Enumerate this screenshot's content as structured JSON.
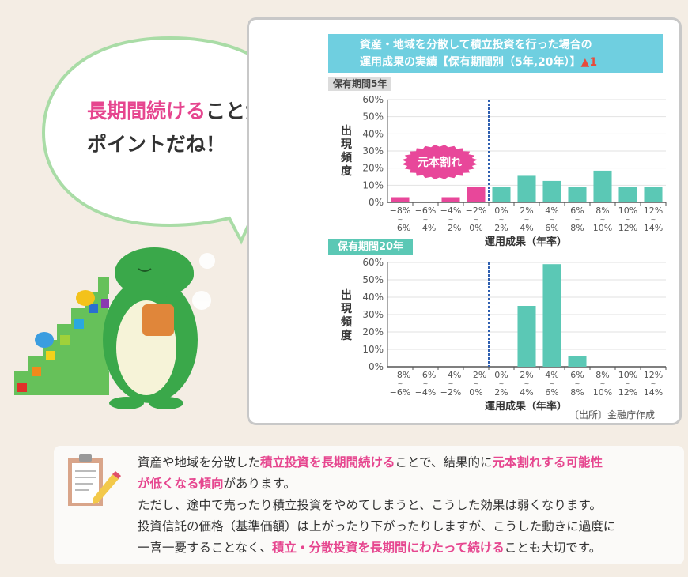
{
  "bubble": {
    "highlight": "長期間続ける",
    "rest1": "ことが",
    "line2": "ポイントだね！"
  },
  "chart_header": {
    "line1": "資産・地域を分散して積立投資を行った場合の",
    "line2": "運用成果の実績【保有期間別（5年,20年）】",
    "note_mark": "1"
  },
  "source": "〔出所〕金融庁作成",
  "burst_label": "元本割れ",
  "colors": {
    "loss": "#e8479a",
    "gain": "#5bc8b5",
    "header": "#6fcfe0",
    "divider": "#2f5fb0"
  },
  "chart_data": [
    {
      "type": "bar",
      "title": "保有期間5年",
      "xlabel": "運用成果（年率）",
      "ylabel": "出現頻度",
      "ylim": [
        0,
        60
      ],
      "yticks": [
        "0%",
        "10%",
        "20%",
        "30%",
        "40%",
        "50%",
        "60%"
      ],
      "grid": true,
      "categories": [
        [
          "−8%",
          "−6%"
        ],
        [
          "−6%",
          "−4%"
        ],
        [
          "−4%",
          "−2%"
        ],
        [
          "−2%",
          "0%"
        ],
        [
          "0%",
          "2%"
        ],
        [
          "2%",
          "4%"
        ],
        [
          "4%",
          "6%"
        ],
        [
          "6%",
          "8%"
        ],
        [
          "8%",
          "10%"
        ],
        [
          "10%",
          "12%"
        ],
        [
          "12%",
          "14%"
        ]
      ],
      "values": [
        3,
        0,
        3,
        9,
        9,
        15.5,
        12.5,
        9,
        18.5,
        9,
        9
      ],
      "annotation": "元本割れ"
    },
    {
      "type": "bar",
      "title": "保有期間20年",
      "xlabel": "運用成果（年率）",
      "ylabel": "出現頻度",
      "ylim": [
        0,
        60
      ],
      "yticks": [
        "0%",
        "10%",
        "20%",
        "30%",
        "40%",
        "50%",
        "60%"
      ],
      "grid": true,
      "categories": [
        [
          "−8%",
          "−6%"
        ],
        [
          "−6%",
          "−4%"
        ],
        [
          "−4%",
          "−2%"
        ],
        [
          "−2%",
          "0%"
        ],
        [
          "0%",
          "2%"
        ],
        [
          "2%",
          "4%"
        ],
        [
          "4%",
          "6%"
        ],
        [
          "6%",
          "8%"
        ],
        [
          "8%",
          "10%"
        ],
        [
          "10%",
          "12%"
        ],
        [
          "12%",
          "14%"
        ]
      ],
      "values": [
        0,
        0,
        0,
        0,
        0,
        35,
        59,
        6,
        0,
        0,
        0
      ]
    }
  ],
  "note": {
    "l1a": "資産や地域を分散した",
    "l1b": "積立投資を長期間続ける",
    "l1c": "ことで、結果的に",
    "l1d": "元本割れする可能性",
    "l2a": "が低くなる傾向",
    "l2b": "があります。",
    "l3": "ただし、途中で売ったり積立投資をやめてしまうと、こうした効果は弱くなります。",
    "l4": "投資信託の価格（基準価額）は上がったり下がったりしますが、こうした動きに過度に",
    "l5a": "一喜一憂することなく、",
    "l5b": "積立・分散投資を長期間にわたって続ける",
    "l5c": "ことも大切です。"
  }
}
